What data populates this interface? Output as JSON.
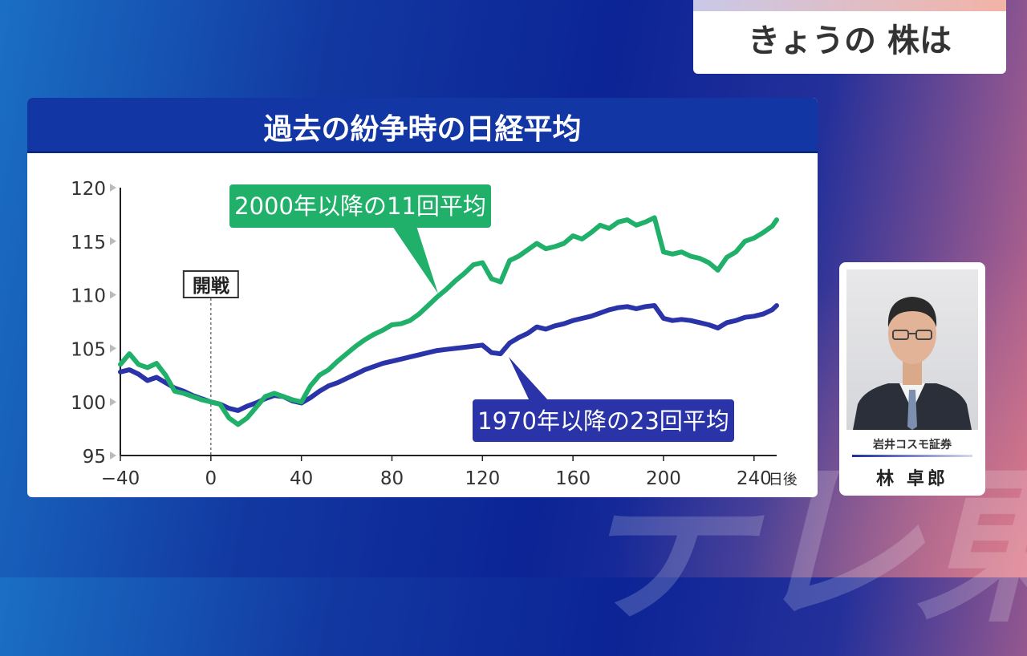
{
  "corner_title": "きょうの 株は",
  "watermark": "テレ東",
  "chart_data": {
    "type": "line",
    "title": "過去の紛争時の日経平均",
    "x_ticks": [
      "−40",
      "0",
      "40",
      "80",
      "120",
      "160",
      "200",
      "240"
    ],
    "x_tick_values": [
      -40,
      0,
      40,
      80,
      120,
      160,
      200,
      240
    ],
    "x_unit": "日後",
    "y_ticks": [
      "95",
      "100",
      "105",
      "110",
      "115",
      "120"
    ],
    "y_tick_values": [
      95,
      100,
      105,
      110,
      115,
      120
    ],
    "xlim": [
      -40,
      250
    ],
    "ylim": [
      95,
      120
    ],
    "marker": {
      "x": 0,
      "label": "開戦"
    },
    "series": [
      {
        "name": "2000年以降の11回平均",
        "color": "#20b06a",
        "x": [
          -40,
          -36,
          -32,
          -28,
          -24,
          -20,
          -16,
          -12,
          -8,
          -4,
          0,
          4,
          8,
          12,
          16,
          20,
          24,
          28,
          32,
          36,
          40,
          44,
          48,
          52,
          56,
          60,
          64,
          68,
          72,
          76,
          80,
          84,
          88,
          92,
          96,
          100,
          104,
          108,
          112,
          116,
          120,
          124,
          128,
          132,
          136,
          140,
          144,
          148,
          152,
          156,
          160,
          164,
          168,
          172,
          176,
          180,
          184,
          188,
          192,
          196,
          200,
          204,
          208,
          212,
          216,
          220,
          224,
          228,
          232,
          236,
          240,
          244,
          248,
          250
        ],
        "y": [
          103.5,
          104.5,
          103.5,
          103.2,
          103.6,
          102.5,
          101.0,
          100.8,
          100.5,
          100.2,
          100.0,
          99.8,
          98.5,
          97.9,
          98.5,
          99.5,
          100.5,
          100.8,
          100.5,
          100.2,
          100.0,
          101.5,
          102.5,
          103.0,
          103.8,
          104.5,
          105.2,
          105.8,
          106.3,
          106.7,
          107.2,
          107.3,
          107.6,
          108.2,
          109.0,
          109.8,
          110.5,
          111.3,
          112.0,
          112.8,
          113.0,
          111.5,
          111.2,
          113.2,
          113.6,
          114.2,
          114.8,
          114.3,
          114.5,
          114.8,
          115.5,
          115.2,
          115.8,
          116.5,
          116.2,
          116.8,
          117.0,
          116.5,
          116.8,
          117.2,
          114.0,
          113.8,
          114.0,
          113.6,
          113.4,
          113.0,
          112.3,
          113.5,
          114.0,
          115.0,
          115.3,
          115.8,
          116.4,
          117.0
        ]
      },
      {
        "name": "1970年以降の23回平均",
        "color": "#2a33a8",
        "x": [
          -40,
          -36,
          -32,
          -28,
          -24,
          -20,
          -16,
          -12,
          -8,
          -4,
          0,
          4,
          8,
          12,
          16,
          20,
          24,
          28,
          32,
          36,
          40,
          44,
          48,
          52,
          56,
          60,
          64,
          68,
          72,
          76,
          80,
          84,
          88,
          92,
          96,
          100,
          104,
          108,
          112,
          116,
          120,
          124,
          128,
          132,
          136,
          140,
          144,
          148,
          152,
          156,
          160,
          164,
          168,
          172,
          176,
          180,
          184,
          188,
          192,
          196,
          200,
          204,
          208,
          212,
          216,
          220,
          224,
          228,
          232,
          236,
          240,
          244,
          248,
          250
        ],
        "y": [
          102.8,
          103.0,
          102.6,
          102.0,
          102.3,
          101.8,
          101.3,
          101.0,
          100.6,
          100.3,
          100.0,
          99.8,
          99.4,
          99.2,
          99.6,
          99.9,
          100.3,
          100.6,
          100.5,
          100.1,
          99.9,
          100.4,
          101.0,
          101.5,
          101.8,
          102.2,
          102.6,
          103.0,
          103.3,
          103.6,
          103.8,
          104.0,
          104.2,
          104.4,
          104.6,
          104.8,
          104.9,
          105.0,
          105.1,
          105.2,
          105.3,
          104.6,
          104.5,
          105.5,
          106.0,
          106.4,
          107.0,
          106.8,
          107.1,
          107.3,
          107.6,
          107.8,
          108.0,
          108.3,
          108.6,
          108.8,
          108.9,
          108.7,
          108.9,
          109.0,
          107.8,
          107.6,
          107.7,
          107.6,
          107.4,
          107.2,
          106.9,
          107.4,
          107.6,
          107.9,
          108.0,
          108.2,
          108.6,
          109.0
        ]
      }
    ]
  },
  "person": {
    "company": "岩井コスモ証券",
    "name": "林 卓郎"
  }
}
